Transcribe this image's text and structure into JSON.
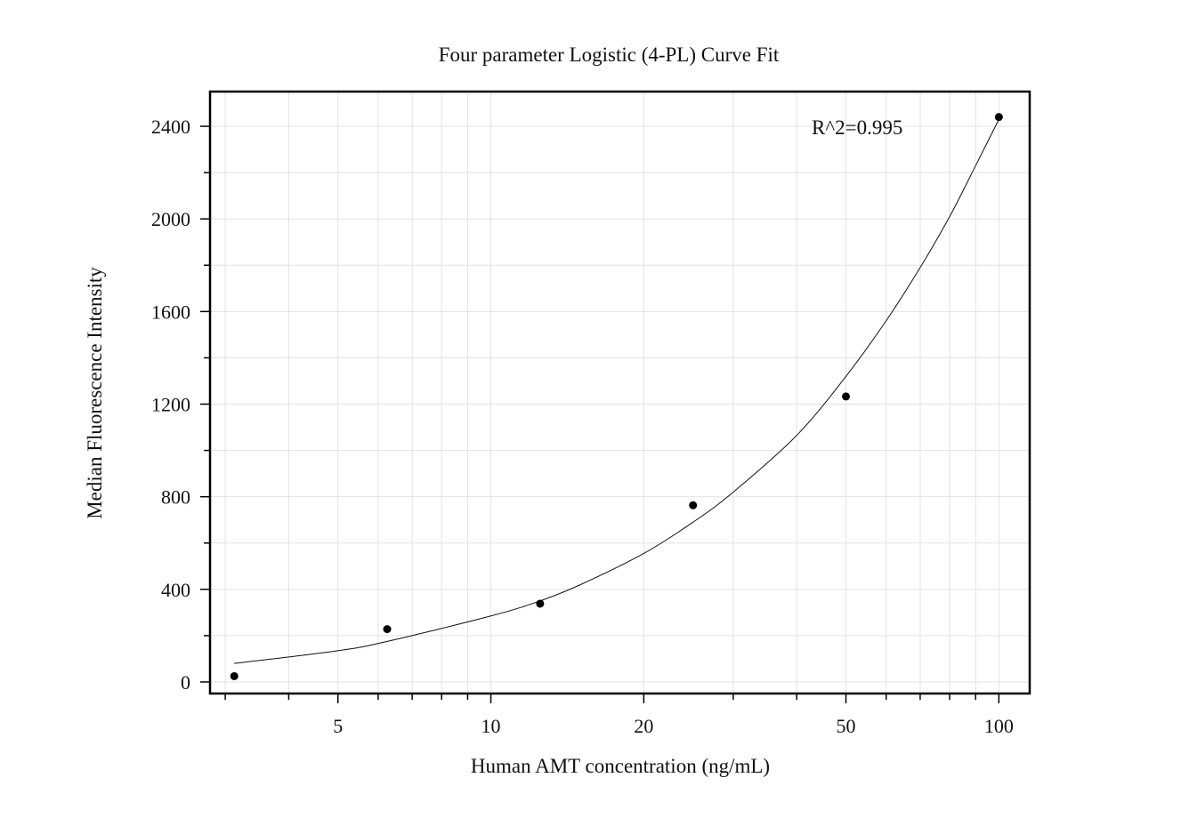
{
  "chart_data": {
    "type": "scatter",
    "title": "Four parameter Logistic (4-PL) Curve Fit",
    "xlabel": "Human AMT concentration (ng/mL)",
    "ylabel": "Median Fluorescence Intensity",
    "x_scale": "log",
    "xlim": [
      2.8,
      115
    ],
    "ylim": [
      -50,
      2550
    ],
    "x_ticks": [
      5,
      10,
      20,
      50,
      100
    ],
    "x_tick_labels": [
      "5",
      "10",
      "20",
      "50",
      "100"
    ],
    "y_ticks": [
      0,
      400,
      800,
      1200,
      1600,
      2000,
      2400
    ],
    "y_tick_labels": [
      "0",
      "400",
      "800",
      "1200",
      "1600",
      "2000",
      "2400"
    ],
    "grid": true,
    "annotation": "R^2=0.995",
    "series": [
      {
        "points": [
          {
            "x": 3.125,
            "y": 25
          },
          {
            "x": 6.25,
            "y": 228
          },
          {
            "x": 12.5,
            "y": 338
          },
          {
            "x": 25,
            "y": 763
          },
          {
            "x": 50,
            "y": 1233
          },
          {
            "x": 100,
            "y": 2440
          }
        ]
      }
    ],
    "fit_curve": {
      "model": "4PL",
      "points": [
        {
          "x": 3.125,
          "y": 80
        },
        {
          "x": 5,
          "y": 135
        },
        {
          "x": 6.25,
          "y": 175
        },
        {
          "x": 10,
          "y": 285
        },
        {
          "x": 12.5,
          "y": 350
        },
        {
          "x": 15,
          "y": 420
        },
        {
          "x": 20,
          "y": 555
        },
        {
          "x": 25,
          "y": 690
        },
        {
          "x": 30,
          "y": 820
        },
        {
          "x": 40,
          "y": 1065
        },
        {
          "x": 50,
          "y": 1320
        },
        {
          "x": 60,
          "y": 1560
        },
        {
          "x": 70,
          "y": 1790
        },
        {
          "x": 80,
          "y": 2010
        },
        {
          "x": 90,
          "y": 2230
        },
        {
          "x": 100,
          "y": 2430
        }
      ]
    }
  },
  "colors": {
    "marker": "#000000",
    "curve": "#111111",
    "grid": "#e3e3e3",
    "frame": "#000000"
  }
}
